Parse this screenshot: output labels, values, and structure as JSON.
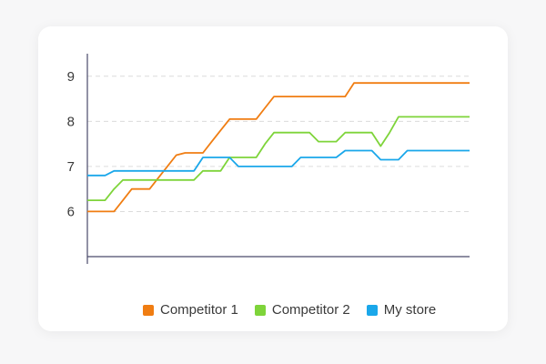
{
  "chart_data": {
    "type": "line",
    "x": [
      0,
      1,
      2,
      3,
      4,
      5,
      6,
      7,
      8,
      9,
      10,
      11,
      12,
      13,
      14,
      15,
      16,
      17,
      18,
      19,
      20,
      21,
      22,
      23,
      24,
      25,
      26,
      27,
      28,
      29,
      30,
      31,
      32,
      33,
      34,
      35,
      36,
      37,
      38,
      39,
      40,
      41,
      42,
      43
    ],
    "yticks": [
      6,
      7,
      8,
      9
    ],
    "ylim": [
      5,
      9.5
    ],
    "grid": true,
    "legend_position": "bottom",
    "series": [
      {
        "name": "Competitor 1",
        "color": "#f07d12",
        "values": [
          6,
          6,
          6,
          6,
          6.25,
          6.5,
          6.5,
          6.5,
          6.75,
          7,
          7.25,
          7.3,
          7.3,
          7.3,
          7.55,
          7.8,
          8.05,
          8.05,
          8.05,
          8.05,
          8.3,
          8.55,
          8.55,
          8.55,
          8.55,
          8.55,
          8.55,
          8.55,
          8.55,
          8.55,
          8.85,
          8.85,
          8.85,
          8.85,
          8.85,
          8.85,
          8.85,
          8.85,
          8.85,
          8.85,
          8.85,
          8.85,
          8.85,
          8.85
        ]
      },
      {
        "name": "Competitor 2",
        "color": "#7ed43a",
        "values": [
          6.25,
          6.25,
          6.25,
          6.5,
          6.7,
          6.7,
          6.7,
          6.7,
          6.7,
          6.7,
          6.7,
          6.7,
          6.7,
          6.9,
          6.9,
          6.9,
          7.2,
          7.2,
          7.2,
          7.2,
          7.5,
          7.75,
          7.75,
          7.75,
          7.75,
          7.75,
          7.55,
          7.55,
          7.55,
          7.75,
          7.75,
          7.75,
          7.75,
          7.45,
          7.75,
          8.1,
          8.1,
          8.1,
          8.1,
          8.1,
          8.1,
          8.1,
          8.1,
          8.1
        ]
      },
      {
        "name": "My store",
        "color": "#1aa7ea",
        "values": [
          6.8,
          6.8,
          6.8,
          6.9,
          6.9,
          6.9,
          6.9,
          6.9,
          6.9,
          6.9,
          6.9,
          6.9,
          6.9,
          7.2,
          7.2,
          7.2,
          7.2,
          7.0,
          7.0,
          7.0,
          7.0,
          7.0,
          7.0,
          7.0,
          7.2,
          7.2,
          7.2,
          7.2,
          7.2,
          7.35,
          7.35,
          7.35,
          7.35,
          7.15,
          7.15,
          7.15,
          7.35,
          7.35,
          7.35,
          7.35,
          7.35,
          7.35,
          7.35,
          7.35
        ]
      }
    ]
  }
}
